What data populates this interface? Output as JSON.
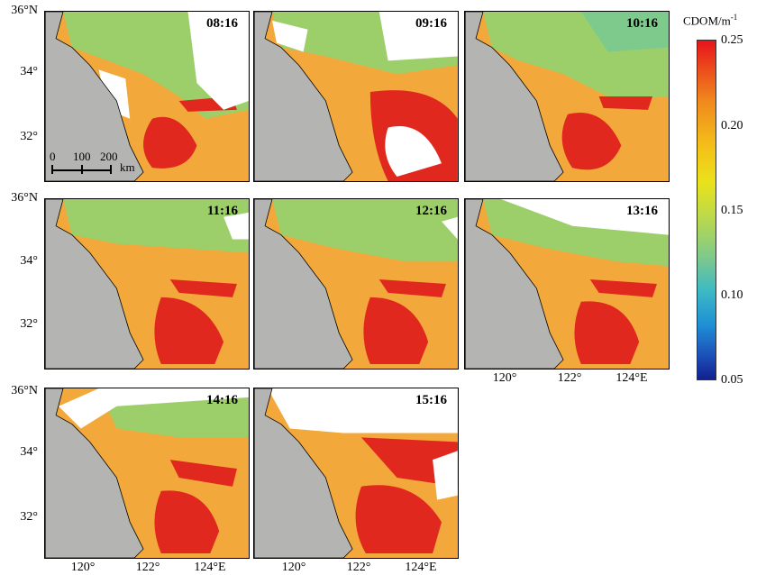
{
  "panels": [
    {
      "time": "08:16"
    },
    {
      "time": "09:16"
    },
    {
      "time": "10:16"
    },
    {
      "time": "11:16"
    },
    {
      "time": "12:16"
    },
    {
      "time": "13:16"
    },
    {
      "time": "14:16"
    },
    {
      "time": "15:16"
    }
  ],
  "y_axis_labels": [
    "36°N",
    "34°",
    "32°"
  ],
  "x_axis_labels": [
    "120°",
    "122°",
    "124°E"
  ],
  "colorbar": {
    "title": "CDOM/m",
    "title_sup": "-1",
    "ticks": [
      "0.25",
      "0.20",
      "0.15",
      "0.10",
      "0.05"
    ],
    "range": [
      0.05,
      0.25
    ],
    "colors": [
      "#12208f",
      "#1c4fb8",
      "#3cb9c5",
      "#bcd94a",
      "#e9e21b",
      "#f5c21a",
      "#f08a1d",
      "#e8141c"
    ]
  },
  "scale_bar": {
    "ticks": [
      "0",
      "100",
      "200"
    ],
    "unit": "km"
  },
  "colors": {
    "land": "#b4b4b2",
    "cloud": "#ffffff",
    "high": "#e0281e",
    "mid": "#f2a83a",
    "low": "#9ccf6a"
  }
}
